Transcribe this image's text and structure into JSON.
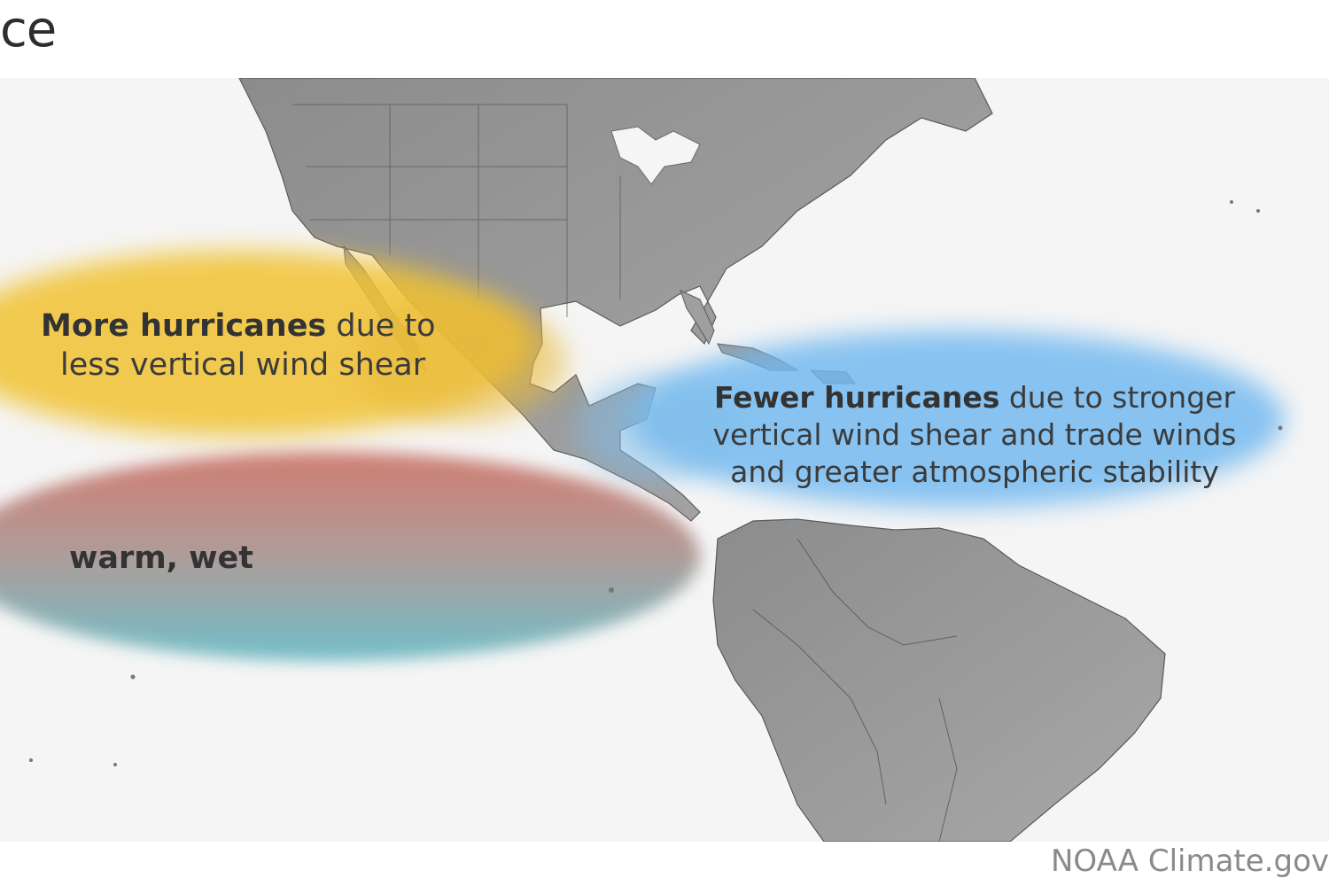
{
  "title_fragment": "ce",
  "annotations": {
    "more_hurricanes": {
      "bold": "More hurricanes",
      "line1_rest": " due to",
      "line2": "less vertical wind shear",
      "color": "#f1c232"
    },
    "fewer_hurricanes": {
      "bold": "Fewer hurricanes",
      "line1_rest": " due to stronger",
      "line2": "vertical wind shear and trade winds",
      "line3": "and greater atmospheric stability",
      "color": "#6fb8f0"
    },
    "warm_wet": {
      "text": "warm, wet",
      "color_top": "#c9685a",
      "color_bottom": "#5bb5c0"
    }
  },
  "credit": "NOAA Climate.gov",
  "colors": {
    "ocean": "#f5f5f5",
    "land": "#9d9d9d",
    "land_dark": "#6e6e6e",
    "borders": "#4a4a4a"
  }
}
